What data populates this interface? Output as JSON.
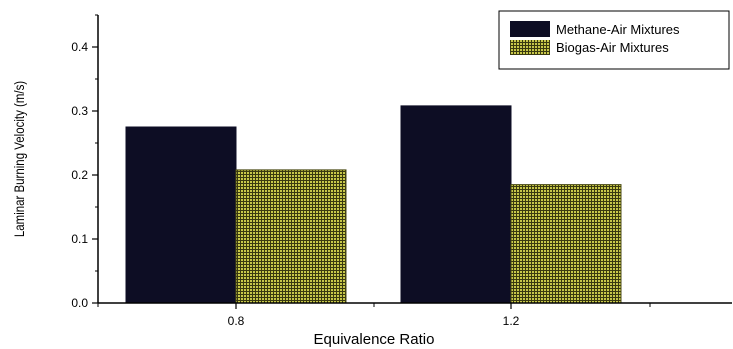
{
  "chart_data": {
    "type": "bar",
    "categories": [
      "0.8",
      "1.2"
    ],
    "series": [
      {
        "name": "Methane-Air Mixtures",
        "values": [
          0.275,
          0.308
        ],
        "color": "#0d0d24",
        "pattern": "solid"
      },
      {
        "name": "Biogas-Air Mixtures",
        "values": [
          0.208,
          0.185
        ],
        "color": "#7a7a22",
        "pattern": "crosshatch"
      }
    ],
    "xlabel": "Equivalence Ratio",
    "ylabel": "Laminar Burning Velocity (m/s)",
    "ylim": [
      0,
      0.45
    ],
    "yticks": [
      "0.0",
      "0.1",
      "0.2",
      "0.3",
      "0.4"
    ],
    "grid": false,
    "legend": "top-right"
  }
}
